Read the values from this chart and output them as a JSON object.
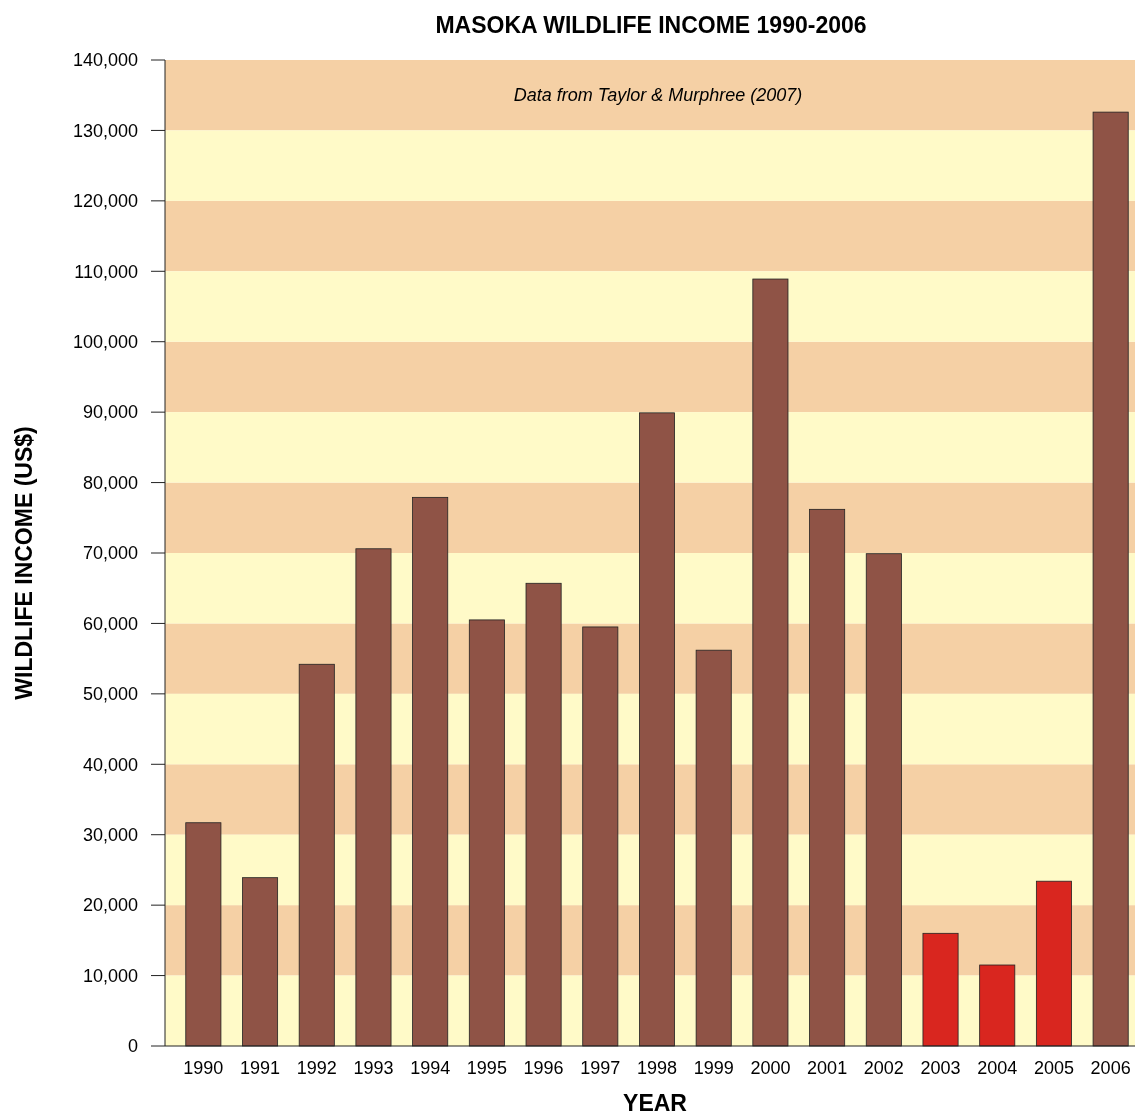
{
  "chart_data": {
    "type": "bar",
    "title": "MASOKA WILDLIFE INCOME 1990-2006",
    "xlabel": "YEAR",
    "ylabel": "WILDLIFE INCOME (US$)",
    "annotations": [
      "Data from Taylor & Murphree (2007)"
    ],
    "categories": [
      "1990",
      "1991",
      "1992",
      "1993",
      "1994",
      "1995",
      "1996",
      "1997",
      "1998",
      "1999",
      "2000",
      "2001",
      "2002",
      "2003",
      "2004",
      "2005",
      "2006"
    ],
    "values": [
      31700,
      23900,
      54200,
      70600,
      77900,
      60500,
      65700,
      59500,
      89900,
      56200,
      108900,
      76200,
      69900,
      16000,
      11500,
      23400,
      132600
    ],
    "colors": [
      "#8f5346",
      "#8f5346",
      "#8f5346",
      "#8f5346",
      "#8f5346",
      "#8f5346",
      "#8f5346",
      "#8f5346",
      "#8f5346",
      "#8f5346",
      "#8f5346",
      "#8f5346",
      "#8f5346",
      "#d9261f",
      "#d9261f",
      "#d9261f",
      "#8f5346"
    ],
    "ylim": [
      0,
      140000
    ],
    "yticks": [
      0,
      {
        "value": 10000,
        "label": "10,000"
      },
      {
        "value": 20000,
        "label": "20,000"
      },
      {
        "value": 30000,
        "label": "30,000"
      },
      {
        "value": 40000,
        "label": "40,000"
      },
      {
        "value": 50000,
        "label": "50,000"
      },
      {
        "value": 60000,
        "label": "60,000"
      },
      {
        "value": 70000,
        "label": "70,000"
      },
      {
        "value": 80000,
        "label": "80,000"
      },
      {
        "value": 90000,
        "label": "90,000"
      },
      {
        "value": 100000,
        "label": "100,000"
      },
      {
        "value": 110000,
        "label": "110,000"
      },
      {
        "value": 120000,
        "label": "120,000"
      },
      {
        "value": 130000,
        "label": "130,000"
      },
      {
        "value": 140000,
        "label": "140,000"
      }
    ],
    "bands": [
      {
        "axis": "y",
        "from": 10000,
        "to": 20000,
        "color": "#f5d0a5"
      },
      {
        "axis": "y",
        "from": 30000,
        "to": 40000,
        "color": "#f5d0a5"
      },
      {
        "axis": "y",
        "from": 50000,
        "to": 60000,
        "color": "#f5d0a5"
      },
      {
        "axis": "y",
        "from": 70000,
        "to": 80000,
        "color": "#f5d0a5"
      },
      {
        "axis": "y",
        "from": 90000,
        "to": 100000,
        "color": "#f5d0a5"
      },
      {
        "axis": "y",
        "from": 110000,
        "to": 120000,
        "color": "#f5d0a5"
      },
      {
        "axis": "y",
        "from": 130000,
        "to": 140000,
        "color": "#f5d0a5"
      },
      {
        "axis": "y",
        "from": 0,
        "to": 10000,
        "color": "#fffac8"
      },
      {
        "axis": "y",
        "from": 20000,
        "to": 30000,
        "color": "#fffac8"
      },
      {
        "axis": "y",
        "from": 40000,
        "to": 50000,
        "color": "#fffac8"
      },
      {
        "axis": "y",
        "from": 60000,
        "to": 70000,
        "color": "#fffac8"
      },
      {
        "axis": "y",
        "from": 80000,
        "to": 90000,
        "color": "#fffac8"
      },
      {
        "axis": "y",
        "from": 100000,
        "to": 110000,
        "color": "#fffac8"
      },
      {
        "axis": "y",
        "from": 120000,
        "to": 130000,
        "color": "#fffac8"
      }
    ]
  }
}
